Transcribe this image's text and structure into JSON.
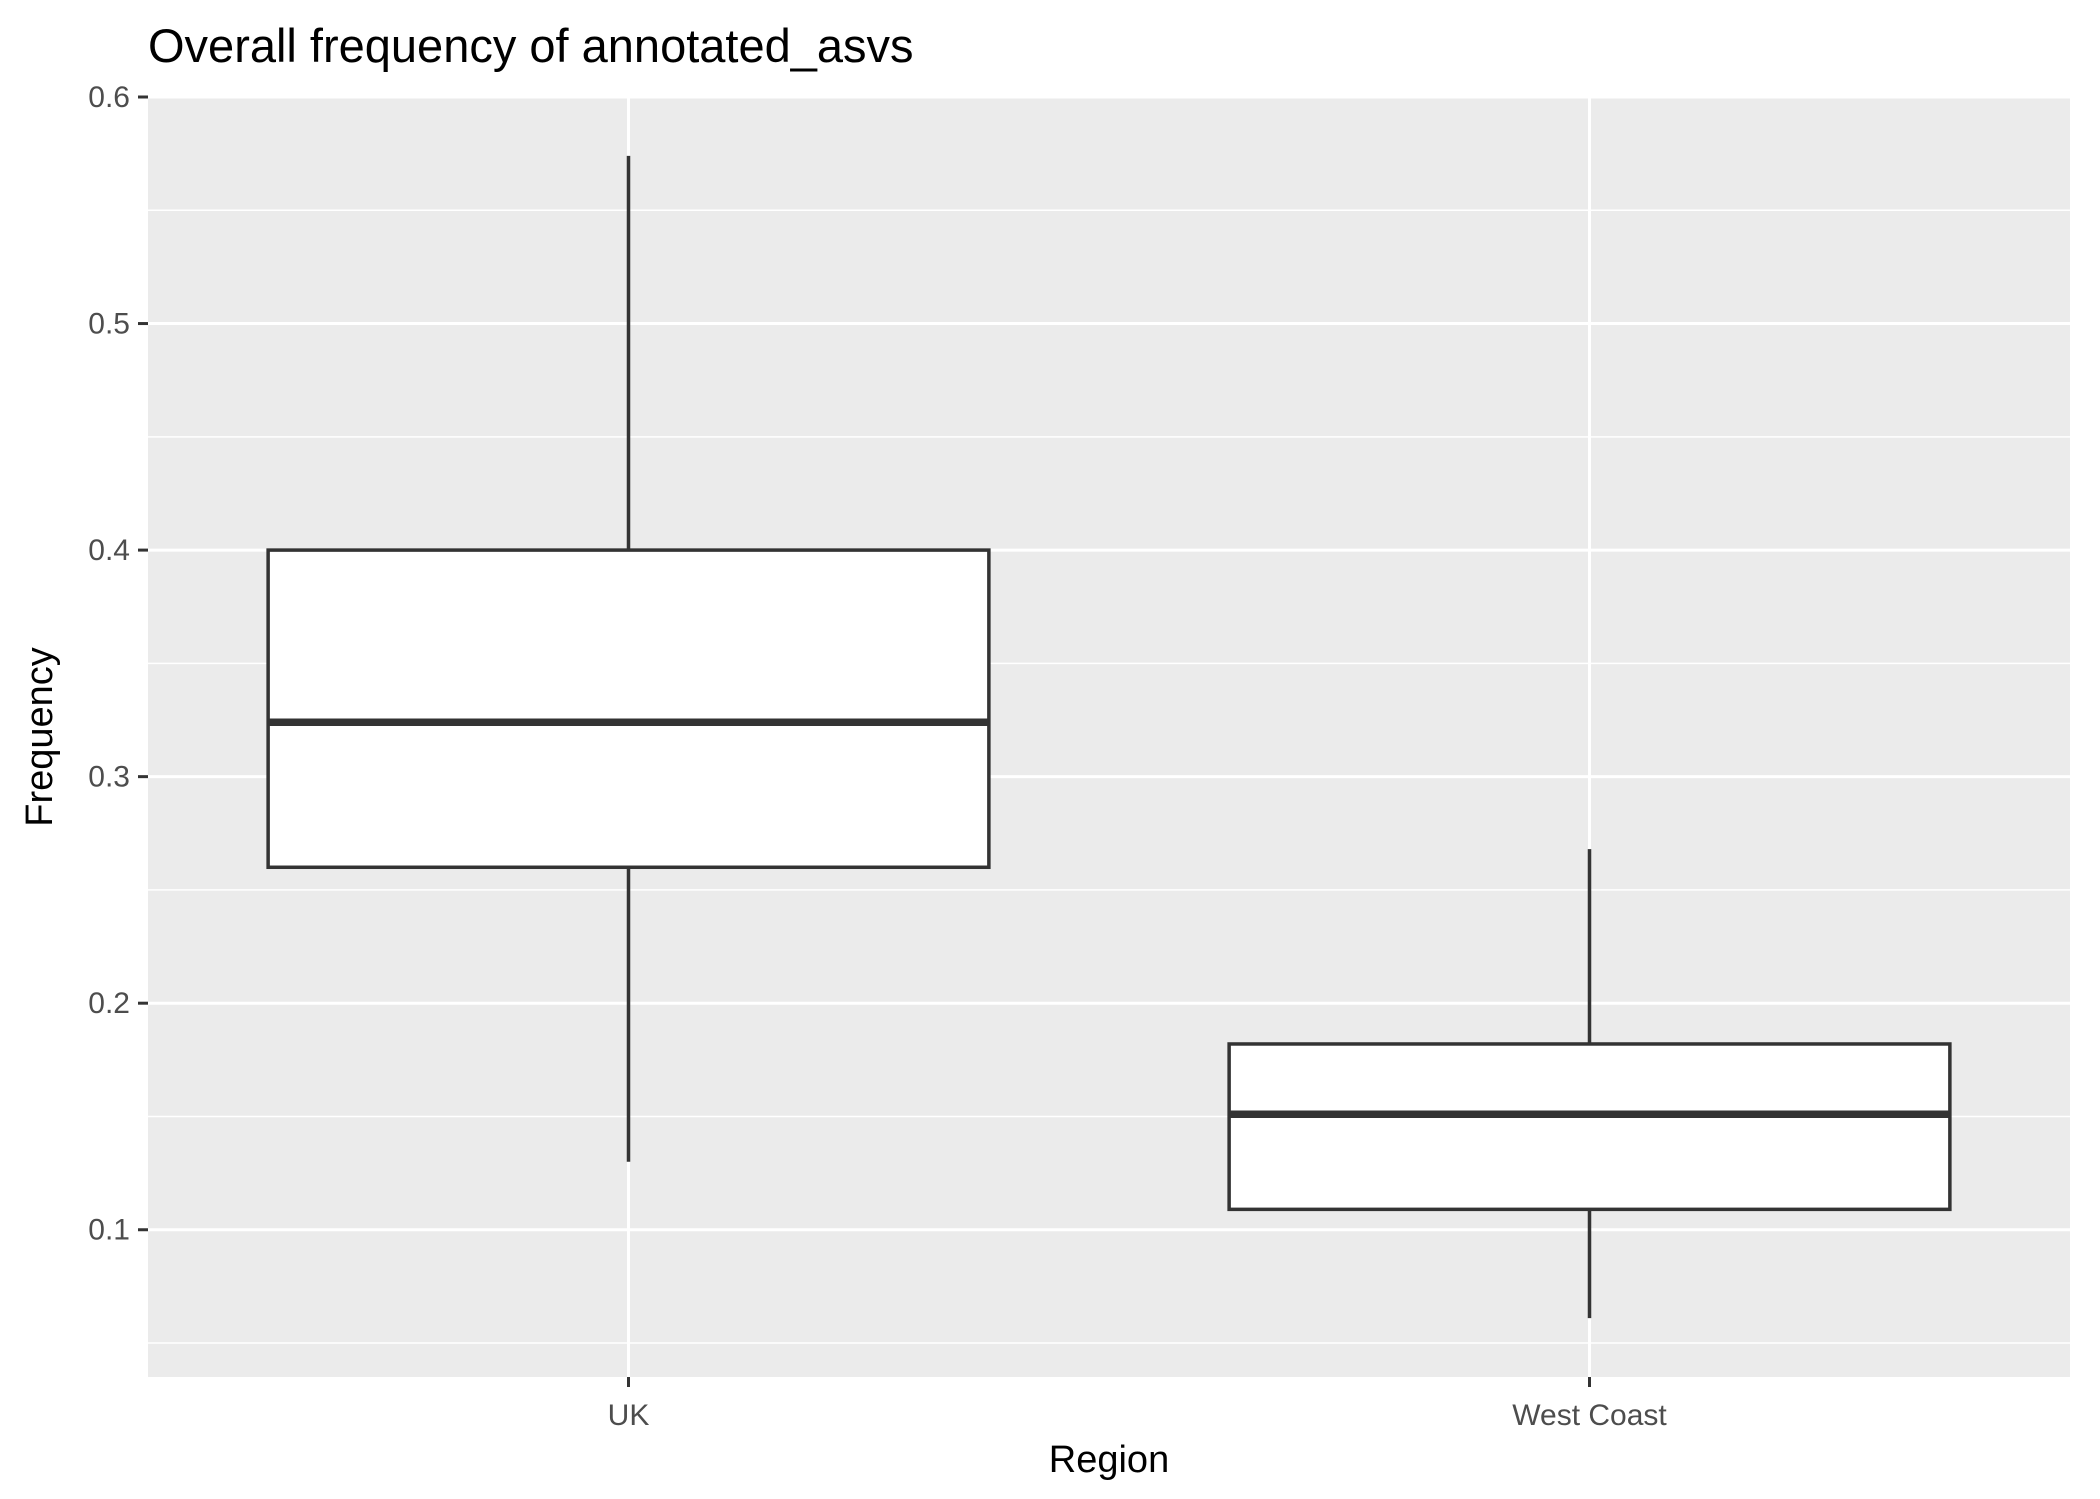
{
  "chart_data": {
    "type": "boxplot",
    "title": "Overall frequency of annotated_asvs",
    "xlabel": "Region",
    "ylabel": "Frequency",
    "categories": [
      "UK",
      "West Coast"
    ],
    "boxes": [
      {
        "category": "UK",
        "whisker_low": 0.13,
        "q1": 0.26,
        "median": 0.324,
        "q3": 0.4,
        "whisker_high": 0.574
      },
      {
        "category": "West Coast",
        "whisker_low": 0.061,
        "q1": 0.109,
        "median": 0.151,
        "q3": 0.182,
        "whisker_high": 0.268
      }
    ],
    "ylim": [
      0.035,
      0.6
    ],
    "y_ticks": [
      0.1,
      0.2,
      0.3,
      0.4,
      0.5,
      0.6
    ],
    "y_tick_labels": [
      "0.1",
      "0.2",
      "0.3",
      "0.4",
      "0.5",
      "0.6"
    ],
    "y_minor_ticks": [
      0.05,
      0.15,
      0.25,
      0.35,
      0.45,
      0.55
    ],
    "grid": true,
    "legend": "none",
    "colors": {
      "panel_background": "#ebebeb",
      "grid": "#ffffff",
      "box_fill": "#ffffff",
      "box_stroke": "#333333",
      "tick": "#333333"
    }
  }
}
